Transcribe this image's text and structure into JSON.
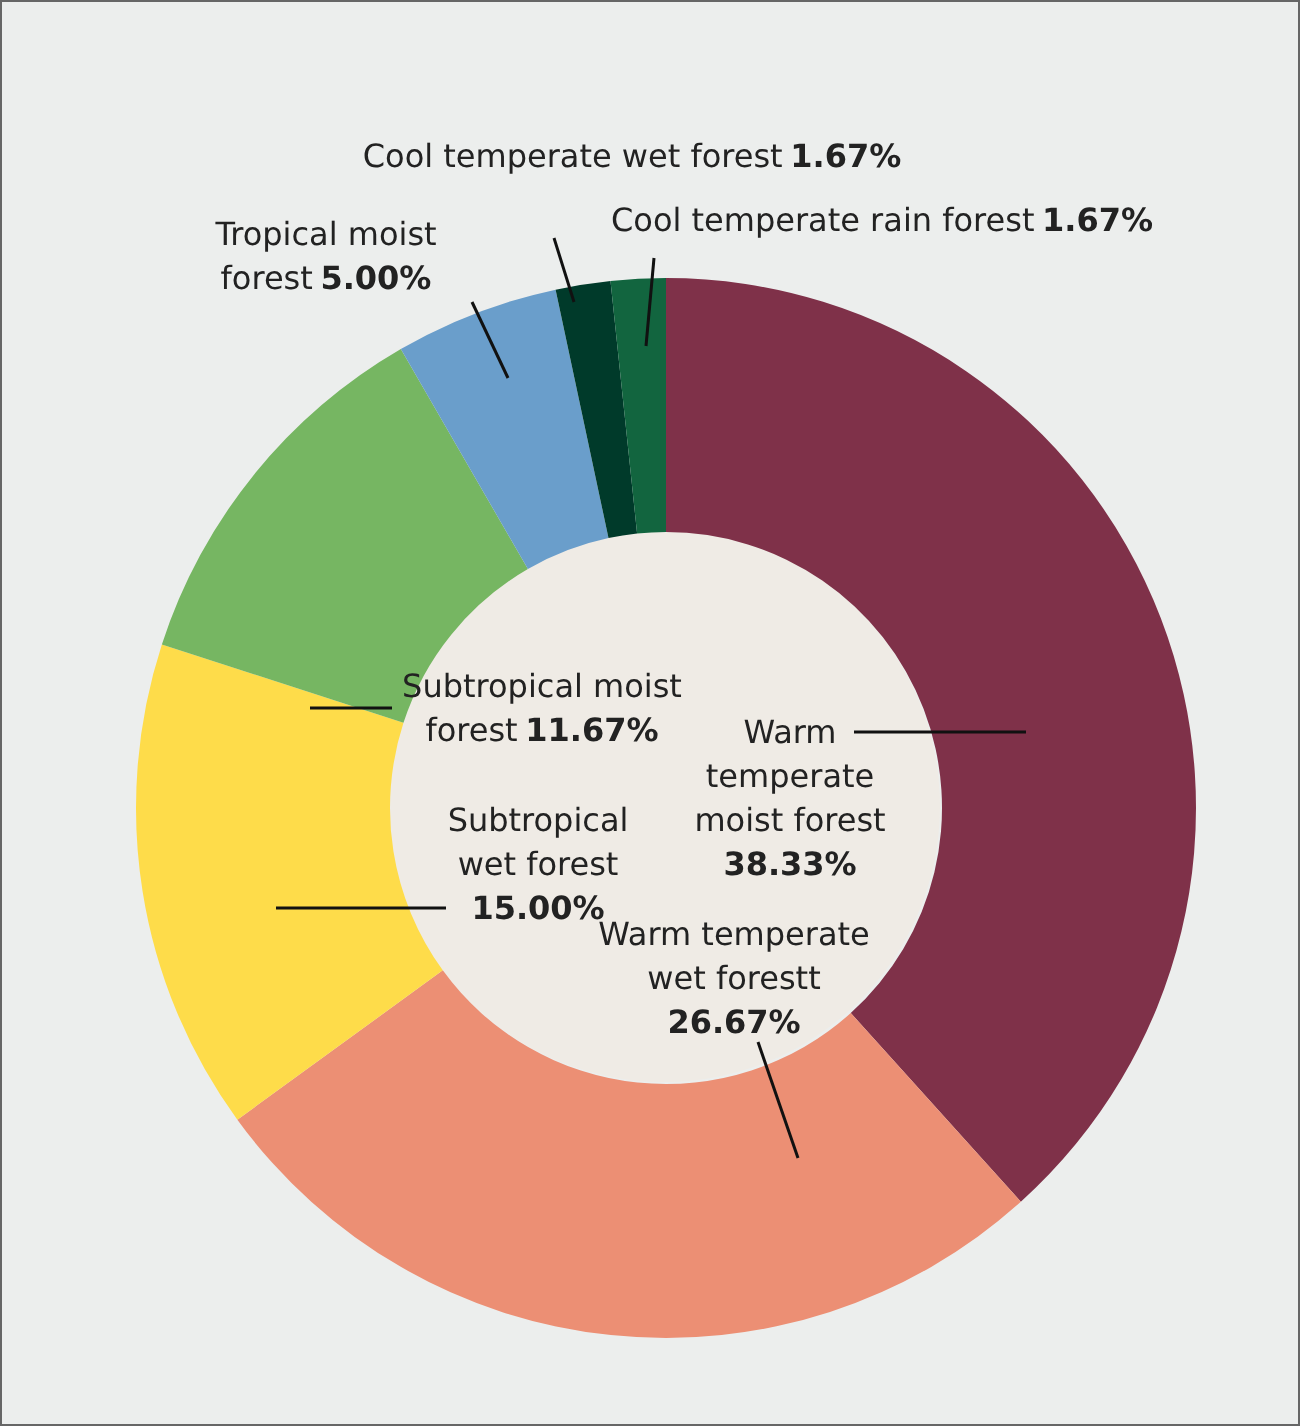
{
  "chart_data": {
    "type": "donut",
    "categories": [
      "Warm temperate moist forest",
      "Warm temperate wet forestt",
      "Subtropical wet forest",
      "Subtropical moist forest",
      "Tropical moist forest",
      "Cool temperate wet forest",
      "Cool temperate rain forest"
    ],
    "values": [
      38.33,
      26.67,
      15.0,
      11.67,
      5.0,
      1.67,
      1.67
    ],
    "value_labels": [
      "38.33%",
      "26.67%",
      "15.00%",
      "11.67%",
      "5.00%",
      "1.67%",
      "1.67%"
    ],
    "colors": [
      "#7f3149",
      "#ec8f74",
      "#fedc4a",
      "#76b662",
      "#6a9ecb",
      "#003a2a",
      "#12653f"
    ],
    "legend": false
  }
}
